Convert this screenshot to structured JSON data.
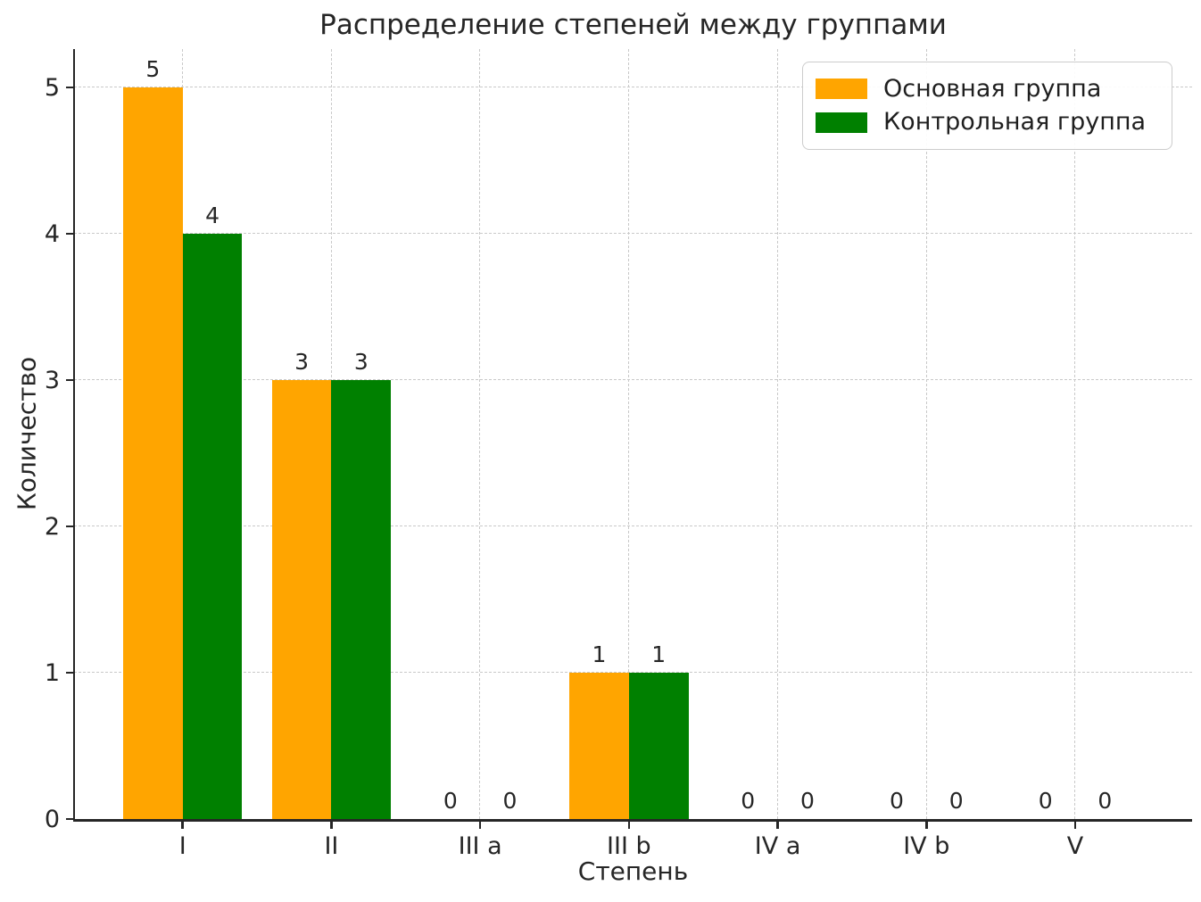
{
  "figure": {
    "title": "Распределение степеней между группами",
    "xlabel": "Степень",
    "ylabel": "Количество"
  },
  "chart_data": {
    "type": "bar",
    "title": "Распределение степеней между группами",
    "xlabel": "Степень",
    "ylabel": "Количество",
    "categories": [
      "I",
      "II",
      "III a",
      "III b",
      "IV a",
      "IV b",
      "V"
    ],
    "series": [
      {
        "name": "Основная группа",
        "color": "#FFA500",
        "values": [
          5,
          3,
          0,
          1,
          0,
          0,
          0
        ]
      },
      {
        "name": "Контрольная группа",
        "color": "#008000",
        "values": [
          4,
          3,
          0,
          1,
          0,
          0,
          0
        ]
      }
    ],
    "bar_value_labels": [
      [
        "5",
        "3",
        "0",
        "1",
        "0",
        "0",
        "0"
      ],
      [
        "4",
        "3",
        "0",
        "1",
        "0",
        "0",
        "0"
      ]
    ],
    "yticks": [
      "0",
      "1",
      "2",
      "3",
      "4",
      "5"
    ],
    "ylim": [
      0,
      5.26
    ],
    "grid": "both-dashed",
    "legend_position": "upper right"
  }
}
